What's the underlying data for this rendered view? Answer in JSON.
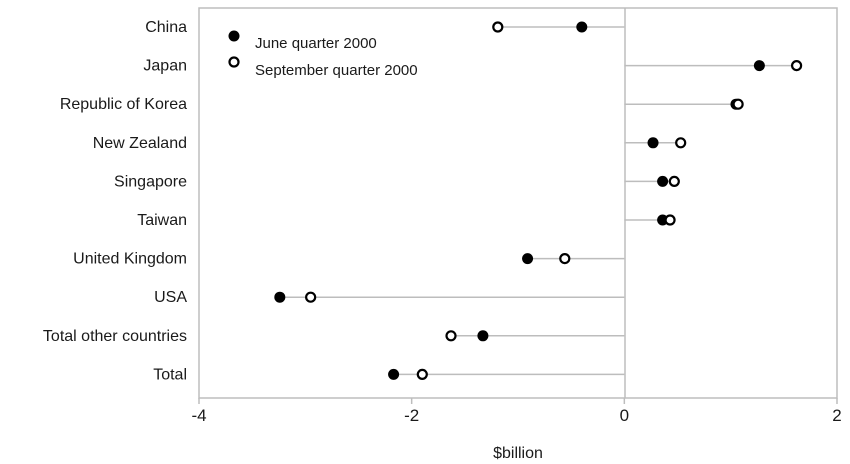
{
  "chart_data": {
    "type": "scatter",
    "subtype": "dot-plot",
    "categories": [
      "China",
      "Japan",
      "Republic of Korea",
      "New Zealand",
      "Singapore",
      "Taiwan",
      "United Kingdom",
      "USA",
      "Total other countries",
      "Total"
    ],
    "series": [
      {
        "name": "June quarter 2000",
        "marker": "filled-circle",
        "color": "#000000",
        "values": [
          -0.4,
          1.27,
          1.05,
          0.27,
          0.36,
          0.36,
          -0.91,
          -3.24,
          -1.33,
          -2.17
        ]
      },
      {
        "name": "September quarter 2000",
        "marker": "open-circle",
        "color": "#000000",
        "values": [
          -1.19,
          1.62,
          1.07,
          0.53,
          0.47,
          0.43,
          -0.56,
          -2.95,
          -1.63,
          -1.9
        ]
      }
    ],
    "title": "",
    "xlabel": "$billion",
    "ylabel": "",
    "xlim": [
      -4,
      2
    ],
    "xticks": [
      -4,
      -2,
      0,
      2
    ],
    "xtick_labels": [
      "-4",
      "-2",
      "0",
      "2"
    ],
    "grid": false,
    "legend": "top-left"
  }
}
